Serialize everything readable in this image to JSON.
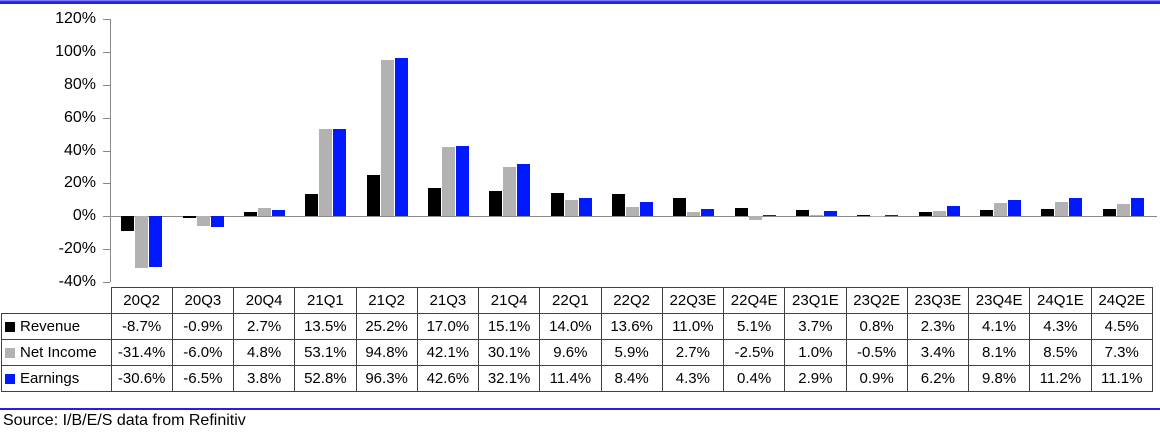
{
  "chart_data": {
    "type": "bar",
    "title": "",
    "categories": [
      "20Q2",
      "20Q3",
      "20Q4",
      "21Q1",
      "21Q2",
      "21Q3",
      "21Q4",
      "22Q1",
      "22Q2",
      "22Q3E",
      "22Q4E",
      "23Q1E",
      "23Q2E",
      "23Q3E",
      "23Q4E",
      "24Q1E",
      "24Q2E"
    ],
    "series": [
      {
        "name": "Revenue",
        "color": "#000000",
        "values": [
          -8.7,
          -0.9,
          2.7,
          13.5,
          25.2,
          17.0,
          15.1,
          14.0,
          13.6,
          11.0,
          5.1,
          3.7,
          0.8,
          2.3,
          4.1,
          4.3,
          4.5
        ]
      },
      {
        "name": "Net Income",
        "color": "#B2B2B2",
        "values": [
          -31.4,
          -6.0,
          4.8,
          53.1,
          94.8,
          42.1,
          30.1,
          9.6,
          5.9,
          2.7,
          -2.5,
          1.0,
          -0.5,
          3.4,
          8.1,
          8.5,
          7.3
        ]
      },
      {
        "name": "Earnings",
        "color": "#0019FF",
        "values": [
          -30.6,
          -6.5,
          3.8,
          52.8,
          96.3,
          42.6,
          32.1,
          11.4,
          8.4,
          4.3,
          0.4,
          2.9,
          0.9,
          6.2,
          9.8,
          11.2,
          11.1
        ]
      }
    ],
    "ylim": [
      -40,
      120
    ],
    "ytick_step": 20,
    "y_tick_labels": [
      "120%",
      "100%",
      "80%",
      "60%",
      "40%",
      "20%",
      "0%",
      "-20%",
      "-40%"
    ],
    "value_format": "0.0%",
    "grid": false,
    "legend_position": "data-table-left-column",
    "xlabel": "",
    "ylabel": ""
  },
  "footer": {
    "source_label": "Source: I/B/E/S data from Refinitiv"
  },
  "colors": {
    "top_rule": "#2222DD",
    "bottom_rule": "#2222DD",
    "axis": "#898989",
    "table_border": "#404040"
  }
}
